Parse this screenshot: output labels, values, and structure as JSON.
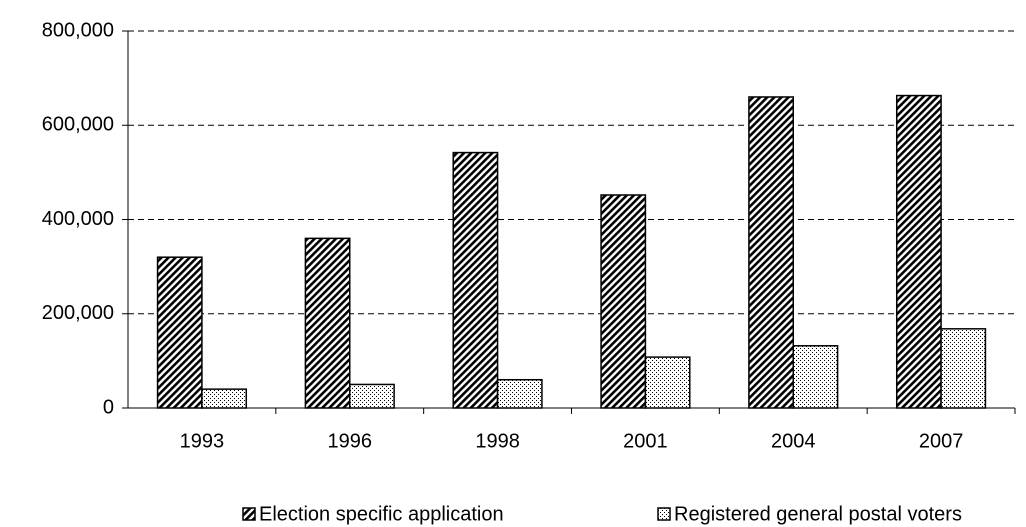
{
  "chart_data": {
    "type": "bar",
    "categories": [
      "1993",
      "1996",
      "1998",
      "2001",
      "2004",
      "2007"
    ],
    "series": [
      {
        "name": "Election specific application",
        "color": "#000000",
        "pattern": "diagonal",
        "values": [
          320000,
          360000,
          542000,
          452000,
          660000,
          663000
        ]
      },
      {
        "name": "Registered general postal voters",
        "color": "#000000",
        "pattern": "dots",
        "values": [
          40000,
          50000,
          60000,
          108000,
          132000,
          168000
        ]
      }
    ],
    "ylim": [
      0,
      800000
    ],
    "yticks": [
      0,
      {
        "value": 200000,
        "label": "200,000"
      },
      {
        "value": 400000,
        "label": "400,000"
      },
      {
        "value": 600000,
        "label": "600,000"
      },
      {
        "value": 800000,
        "label": "800,000"
      }
    ],
    "grid": true,
    "legend": "bottom"
  }
}
